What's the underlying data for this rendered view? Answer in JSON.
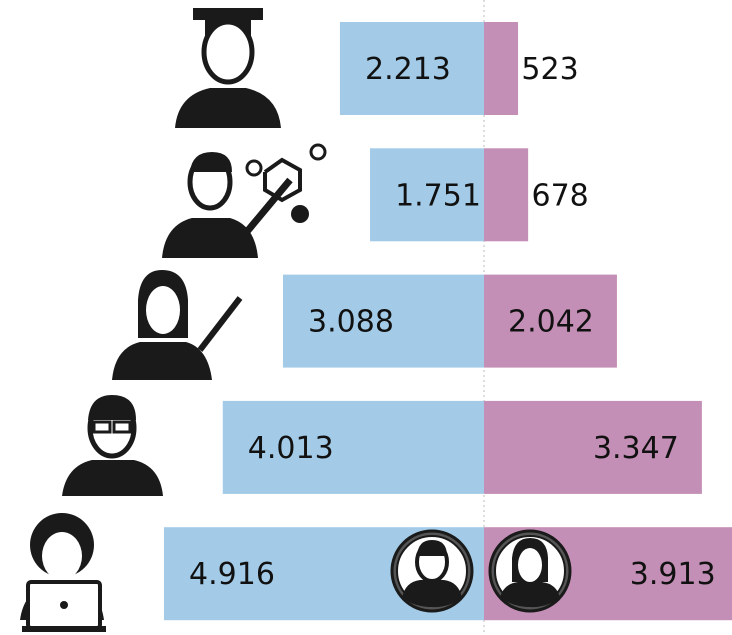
{
  "chart_data": {
    "type": "diverging-bar",
    "series": [
      {
        "color": "#a3cbe8",
        "values": [
          2213,
          1751,
          3088,
          4013,
          4916
        ],
        "value_labels": [
          "2.213",
          "1.751",
          "3.088",
          "4.013",
          "4.916"
        ]
      },
      {
        "color": "#c48fb6",
        "values": [
          523,
          678,
          2042,
          3347,
          3913
        ],
        "value_labels": [
          "523",
          "678",
          "2.042",
          "3.347",
          "3.913"
        ]
      }
    ]
  }
}
